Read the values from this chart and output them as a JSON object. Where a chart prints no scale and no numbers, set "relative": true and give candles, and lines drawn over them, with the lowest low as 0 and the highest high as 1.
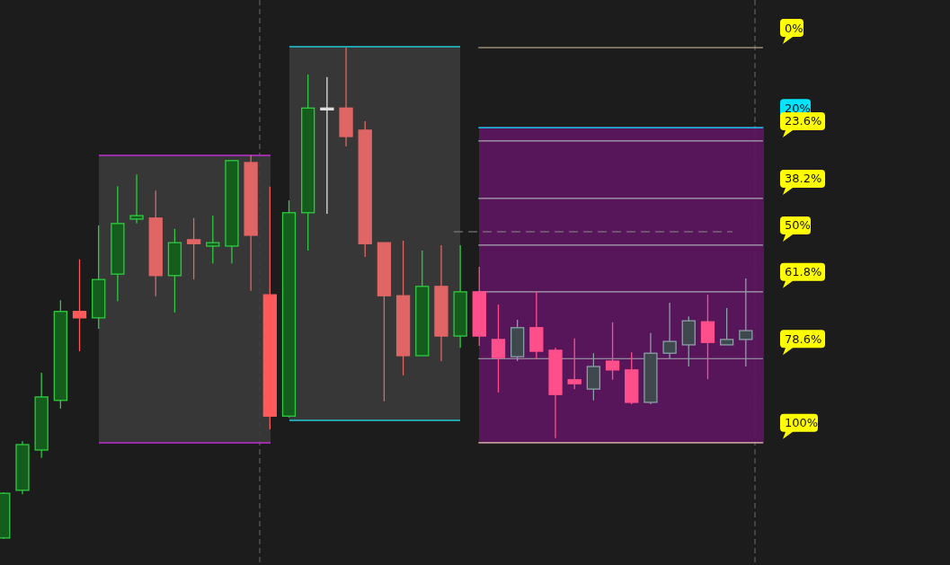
{
  "chart_data": {
    "type": "candlestick",
    "relative": true,
    "categories": [
      null,
      null,
      null,
      null,
      null,
      null,
      null,
      null,
      null,
      null,
      null,
      null,
      null,
      null,
      null,
      null,
      null,
      null,
      null,
      null,
      null,
      null,
      null,
      null,
      null,
      null,
      null,
      null,
      null,
      null,
      null,
      null,
      null,
      null,
      null,
      null,
      null,
      null,
      null,
      null
    ],
    "ohlc": [
      [
        0.002,
        0.095,
        0,
        0.093
      ],
      [
        0.099,
        0.199,
        0.091,
        0.192
      ],
      [
        0.181,
        0.338,
        0.165,
        0.289
      ],
      [
        0.282,
        0.486,
        0.265,
        0.463
      ],
      [
        0.463,
        0.569,
        0.382,
        0.45
      ],
      [
        0.45,
        0.638,
        0.428,
        0.528
      ],
      [
        0.539,
        0.718,
        0.484,
        0.642
      ],
      [
        0.651,
        0.742,
        0.642,
        0.658
      ],
      [
        0.653,
        0.709,
        0.494,
        0.536
      ],
      [
        0.536,
        0.631,
        0.461,
        0.603
      ],
      [
        0.609,
        0.653,
        0.528,
        0.601
      ],
      [
        0.596,
        0.658,
        0.561,
        0.603
      ],
      [
        0.596,
        0.77,
        0.561,
        0.77
      ],
      [
        0.766,
        0.781,
        0.505,
        0.618
      ],
      [
        0.497,
        0.717,
        0.223,
        0.25
      ],
      [
        0.25,
        0.689,
        0.247,
        0.664
      ],
      [
        0.664,
        0.945,
        0.587,
        0.877
      ],
      [
        0.877,
        0.94,
        0.662,
        0.877
      ],
      [
        0.877,
        1,
        0.799,
        0.819
      ],
      [
        0.832,
        0.85,
        0.574,
        0.601
      ],
      [
        0.603,
        0.603,
        0.28,
        0.495
      ],
      [
        0.495,
        0.607,
        0.333,
        0.373
      ],
      [
        0.373,
        0.587,
        0.373,
        0.514
      ],
      [
        0.514,
        0.598,
        0.362,
        0.413
      ],
      [
        0.413,
        0.598,
        0.389,
        0.503
      ],
      [
        0.503,
        0.554,
        0.393,
        0.413
      ],
      [
        0.406,
        0.477,
        0.298,
        0.369
      ],
      [
        0.371,
        0.446,
        0.362,
        0.43
      ],
      [
        0.43,
        0.503,
        0.366,
        0.382
      ],
      [
        0.384,
        0.389,
        0.205,
        0.294
      ],
      [
        0.324,
        0.408,
        0.305,
        0.316
      ],
      [
        0.305,
        0.378,
        0.282,
        0.351
      ],
      [
        0.362,
        0.441,
        0.324,
        0.344
      ],
      [
        0.344,
        0.38,
        0.274,
        0.278
      ],
      [
        0.278,
        0.419,
        0.274,
        0.378
      ],
      [
        0.378,
        0.481,
        0.367,
        0.402
      ],
      [
        0.395,
        0.453,
        0.351,
        0.444
      ],
      [
        0.442,
        0.497,
        0.325,
        0.4
      ],
      [
        0.395,
        0.47,
        0.395,
        0.406
      ],
      [
        0.406,
        0.53,
        0.351,
        0.424
      ]
    ],
    "colors": [
      "#2ecc40",
      "#2ecc40",
      "#2ecc40",
      "#2ecc40",
      "#ff5a5a",
      "#2ecc40",
      "#2ecc40",
      "#2ecc40",
      "#e06666",
      "#2ecc40",
      "#e06666",
      "#2ecc40",
      "#2ecc40",
      "#e06666",
      "#ff5a5a",
      "#2ecc40",
      "#2ecc40",
      "#e0e0e0",
      "#e06666",
      "#e06666",
      "#e06666",
      "#e06666",
      "#2ecc40",
      "#e06666",
      "#2ecc40",
      "#ff4f8b",
      "#ff4f8b",
      "#8aa0a8",
      "#ff4f8b",
      "#ff4f8b",
      "#ff4f8b",
      "#8aa0a8",
      "#ff4f8b",
      "#ff4f8b",
      "#8aa0a8",
      "#8aa0a8",
      "#8aa0a8",
      "#ff4f8b",
      "#8aa0a8",
      "#8aa0a8"
    ],
    "ref_lines": [
      {
        "axis": "y",
        "value": 1,
        "color": "#d8c8a0"
      },
      {
        "axis": "y",
        "value": 0.837,
        "color": "#00e5ff"
      },
      {
        "axis": "y",
        "value": 0.81,
        "color": "#a8a8b0"
      },
      {
        "axis": "y",
        "value": 0.693,
        "color": "#a8a8b0"
      },
      {
        "axis": "y",
        "value": 0.598,
        "color": "#a8a8b0"
      },
      {
        "axis": "y",
        "value": 0.503,
        "color": "#a8a8b0"
      },
      {
        "axis": "y",
        "value": 0.367,
        "color": "#a8a8b0"
      },
      {
        "axis": "y",
        "value": 0.196,
        "color": "#d8c8a0"
      }
    ],
    "annotations": [
      "0%",
      "20%",
      "23.6%",
      "38.2%",
      "50%",
      "61.8%",
      "78.6%",
      "100%"
    ]
  }
}
